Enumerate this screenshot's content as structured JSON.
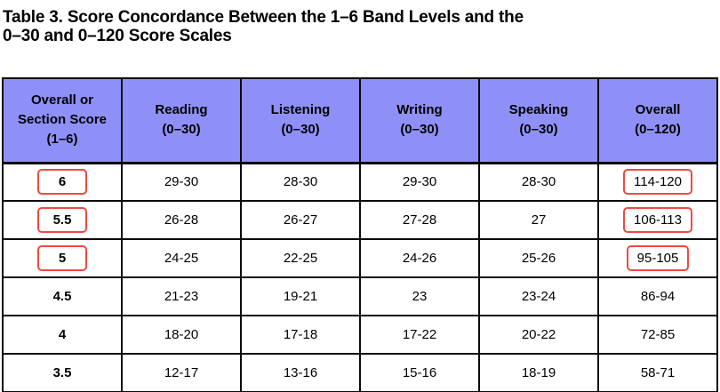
{
  "title": "Table 3. Score Concordance Between the 1–6 Band Levels and the\n0–30 and 0–120 Score Scales",
  "colors": {
    "header_background": "#8f90f7",
    "table_border": "#0b0b0b",
    "highlight_box_red": "#f2483f",
    "text": "#000000",
    "page_background": "#ffffff"
  },
  "table": {
    "columns": [
      {
        "key": "band",
        "label": "Overall or\nSection Score\n(1–6)"
      },
      {
        "key": "reading",
        "label": "Reading\n(0–30)"
      },
      {
        "key": "listening",
        "label": "Listening\n(0–30)"
      },
      {
        "key": "writing",
        "label": "Writing\n(0–30)"
      },
      {
        "key": "speaking",
        "label": "Speaking\n(0–30)"
      },
      {
        "key": "overall",
        "label": "Overall\n(0–120)"
      }
    ],
    "rows": [
      {
        "band": "6",
        "reading": "29-30",
        "listening": "28-30",
        "writing": "29-30",
        "speaking": "28-30",
        "overall": "114-120",
        "highlighted": true
      },
      {
        "band": "5.5",
        "reading": "26-28",
        "listening": "26-27",
        "writing": "27-28",
        "speaking": "27",
        "overall": "106-113",
        "highlighted": true
      },
      {
        "band": "5",
        "reading": "24-25",
        "listening": "22-25",
        "writing": "24-26",
        "speaking": "25-26",
        "overall": "95-105",
        "highlighted": true
      },
      {
        "band": "4.5",
        "reading": "21-23",
        "listening": "19-21",
        "writing": "23",
        "speaking": "23-24",
        "overall": "86-94",
        "highlighted": false
      },
      {
        "band": "4",
        "reading": "18-20",
        "listening": "17-18",
        "writing": "17-22",
        "speaking": "20-22",
        "overall": "72-85",
        "highlighted": false
      },
      {
        "band": "3.5",
        "reading": "12-17",
        "listening": "13-16",
        "writing": "15-16",
        "speaking": "18-19",
        "overall": "58-71",
        "highlighted": false
      }
    ]
  }
}
